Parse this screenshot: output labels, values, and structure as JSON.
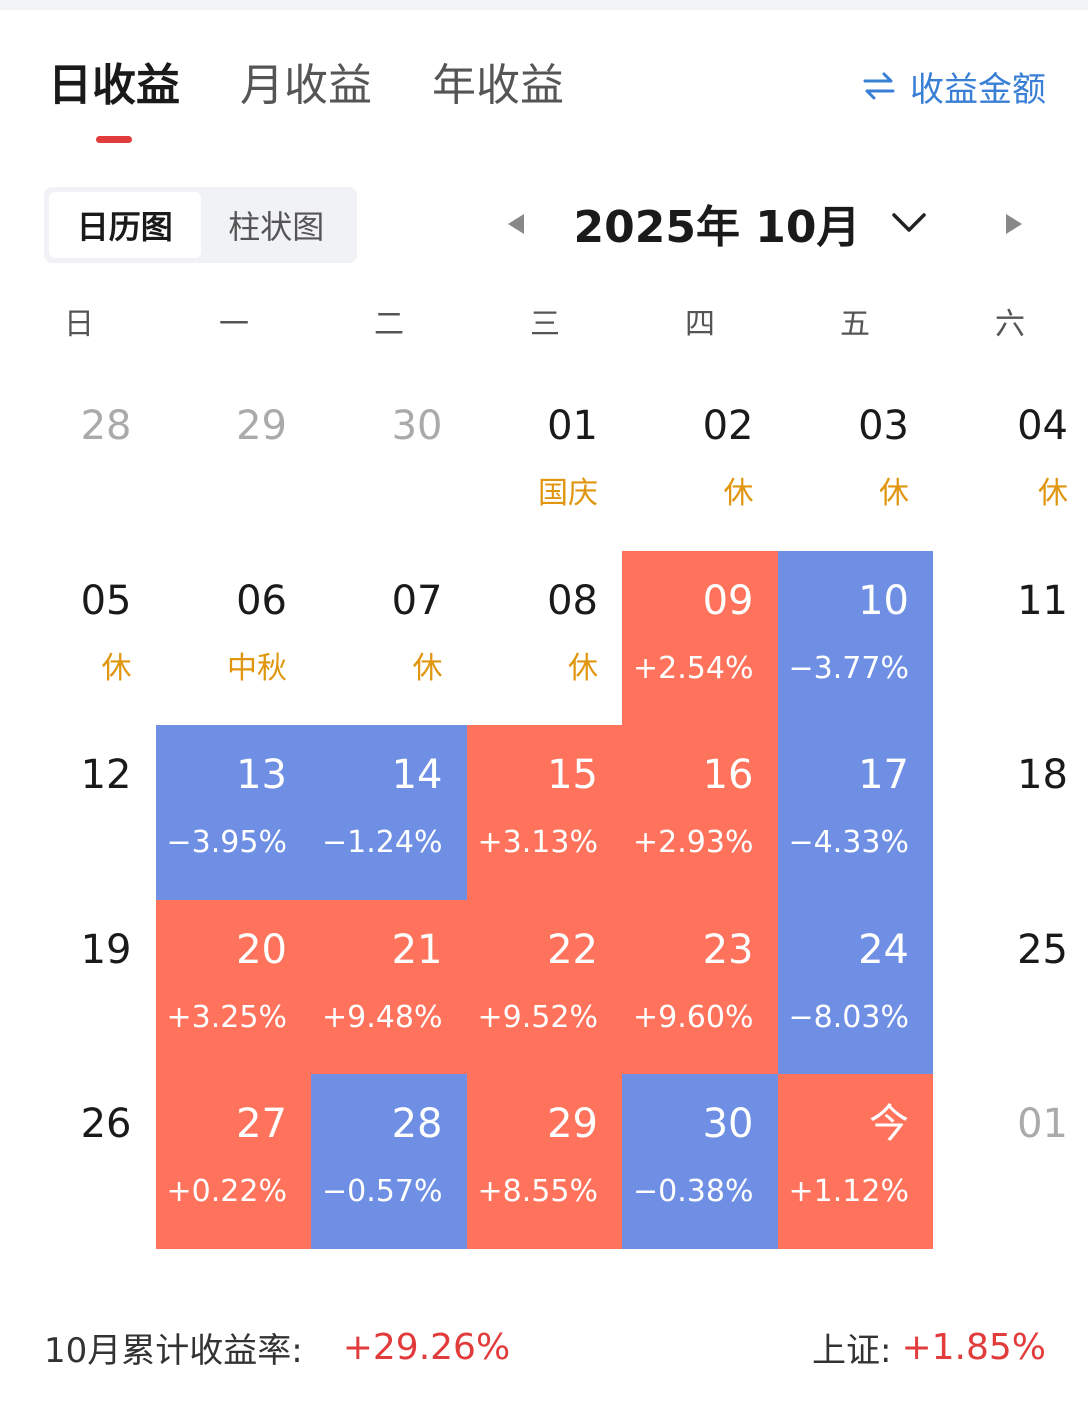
{
  "tabs": [
    {
      "label": "日收益",
      "active": true
    },
    {
      "label": "月收益",
      "active": false
    },
    {
      "label": "年收益",
      "active": false
    }
  ],
  "switch_label": "收益金额",
  "switch_icon": "swap-arrows-icon",
  "view_toggle": [
    {
      "label": "日历图",
      "active": true
    },
    {
      "label": "柱状图",
      "active": false
    }
  ],
  "month_title": "2025年 10月",
  "weekdays": [
    "日",
    "一",
    "二",
    "三",
    "四",
    "五",
    "六"
  ],
  "colors": {
    "up": "#ff735c",
    "down": "#6e8fe4",
    "holiday": "#e0960e",
    "accent": "#e23b3b",
    "link": "#3a7fd6"
  },
  "calendar": [
    [
      {
        "day": "28",
        "other": true
      },
      {
        "day": "29",
        "other": true
      },
      {
        "day": "30",
        "other": true
      },
      {
        "day": "01",
        "note": "国庆"
      },
      {
        "day": "02",
        "note": "休"
      },
      {
        "day": "03",
        "note": "休"
      },
      {
        "day": "04",
        "note": "休"
      }
    ],
    [
      {
        "day": "05",
        "note": "休"
      },
      {
        "day": "06",
        "note": "中秋"
      },
      {
        "day": "07",
        "note": "休"
      },
      {
        "day": "08",
        "note": "休"
      },
      {
        "day": "09",
        "change": "+2.54%",
        "trend": "up"
      },
      {
        "day": "10",
        "change": "−3.77%",
        "trend": "down"
      },
      {
        "day": "11"
      }
    ],
    [
      {
        "day": "12"
      },
      {
        "day": "13",
        "change": "−3.95%",
        "trend": "down"
      },
      {
        "day": "14",
        "change": "−1.24%",
        "trend": "down"
      },
      {
        "day": "15",
        "change": "+3.13%",
        "trend": "up"
      },
      {
        "day": "16",
        "change": "+2.93%",
        "trend": "up"
      },
      {
        "day": "17",
        "change": "−4.33%",
        "trend": "down"
      },
      {
        "day": "18"
      }
    ],
    [
      {
        "day": "19"
      },
      {
        "day": "20",
        "change": "+3.25%",
        "trend": "up"
      },
      {
        "day": "21",
        "change": "+9.48%",
        "trend": "up"
      },
      {
        "day": "22",
        "change": "+9.52%",
        "trend": "up"
      },
      {
        "day": "23",
        "change": "+9.60%",
        "trend": "up"
      },
      {
        "day": "24",
        "change": "−8.03%",
        "trend": "down"
      },
      {
        "day": "25"
      }
    ],
    [
      {
        "day": "26"
      },
      {
        "day": "27",
        "change": "+0.22%",
        "trend": "up"
      },
      {
        "day": "28",
        "change": "−0.57%",
        "trend": "down"
      },
      {
        "day": "29",
        "change": "+8.55%",
        "trend": "up"
      },
      {
        "day": "30",
        "change": "−0.38%",
        "trend": "down"
      },
      {
        "day": "今",
        "change": "+1.12%",
        "trend": "up"
      },
      {
        "day": "01",
        "other": true
      }
    ]
  ],
  "footer": {
    "cumulative_label": "10月累计收益率:",
    "cumulative_value": "+29.26%",
    "index_label": "上证:",
    "index_value": "+1.85%"
  }
}
